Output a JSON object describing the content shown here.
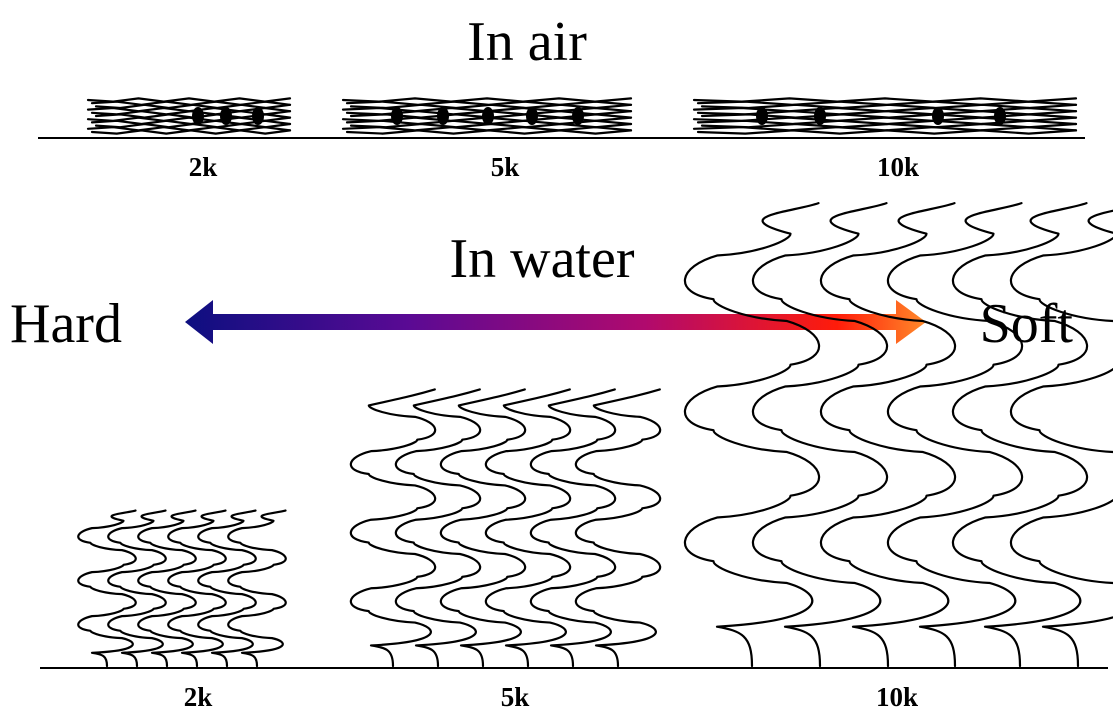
{
  "air": {
    "title": "In air",
    "labels": [
      "2k",
      "5k",
      "10k"
    ]
  },
  "water": {
    "title": "In water",
    "labels": [
      "2k",
      "5k",
      "10k"
    ]
  },
  "scale": {
    "left_label": "Hard",
    "right_label": "Soft",
    "colors": [
      "#0d0f80",
      "#5a0a94",
      "#b00a6e",
      "#ff1c0a",
      "#ff8a2a"
    ]
  },
  "colors": {
    "ink": "#000000",
    "background": "#ffffff"
  }
}
